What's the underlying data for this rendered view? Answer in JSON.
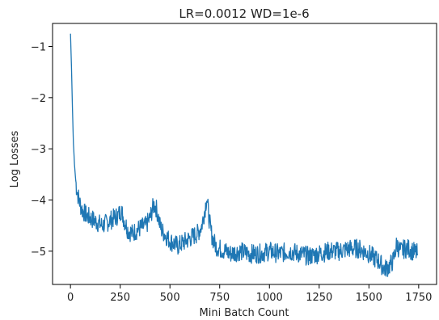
{
  "chart_data": {
    "type": "line",
    "title": "LR=0.0012 WD=1e-6",
    "xlabel": "Mini Batch Count",
    "ylabel": "Log Losses",
    "xlim": [
      -90,
      1840
    ],
    "ylim": [
      -5.65,
      -0.55
    ],
    "xticks": [
      0,
      250,
      500,
      750,
      1000,
      1250,
      1500,
      1750
    ],
    "xtick_labels": [
      "0",
      "250",
      "500",
      "750",
      "1000",
      "1250",
      "1500",
      "1750"
    ],
    "yticks": [
      -1,
      -2,
      -3,
      -4,
      -5
    ],
    "ytick_labels": [
      "−1",
      "−2",
      "−3",
      "−4",
      "−5"
    ],
    "grid": false,
    "series": [
      {
        "color": "#1f77b4",
        "x": [
          0,
          5,
          10,
          15,
          20,
          25,
          30,
          40,
          50,
          60,
          80,
          100,
          120,
          140,
          160,
          180,
          200,
          220,
          240,
          255,
          270,
          290,
          310,
          330,
          350,
          380,
          400,
          410,
          420,
          430,
          440,
          450,
          460,
          480,
          500,
          520,
          540,
          560,
          580,
          600,
          620,
          640,
          660,
          675,
          685,
          695,
          705,
          715,
          730,
          750,
          780,
          800,
          850,
          900,
          950,
          1000,
          1050,
          1100,
          1150,
          1200,
          1250,
          1300,
          1350,
          1400,
          1450,
          1500,
          1550,
          1580,
          1600,
          1620,
          1630,
          1640,
          1650,
          1660,
          1680,
          1700,
          1720,
          1745
        ],
        "y": [
          -0.75,
          -1.4,
          -2.2,
          -2.9,
          -3.3,
          -3.55,
          -3.75,
          -3.95,
          -4.1,
          -4.2,
          -4.3,
          -4.35,
          -4.4,
          -4.45,
          -4.5,
          -4.45,
          -4.4,
          -4.35,
          -4.3,
          -4.2,
          -4.4,
          -4.6,
          -4.65,
          -4.6,
          -4.55,
          -4.5,
          -4.35,
          -4.2,
          -4.1,
          -4.15,
          -4.3,
          -4.5,
          -4.6,
          -4.7,
          -4.8,
          -4.85,
          -4.9,
          -4.85,
          -4.8,
          -4.75,
          -4.7,
          -4.65,
          -4.5,
          -4.2,
          -3.95,
          -4.3,
          -4.6,
          -4.75,
          -4.9,
          -4.95,
          -5.0,
          -5.05,
          -5.0,
          -5.05,
          -5.05,
          -5.0,
          -5.05,
          -5.0,
          -5.05,
          -5.1,
          -5.05,
          -5.0,
          -5.0,
          -4.95,
          -4.95,
          -5.05,
          -5.2,
          -5.35,
          -5.3,
          -5.2,
          -5.05,
          -4.85,
          -4.95,
          -5.0,
          -4.95,
          -4.95,
          -5.0,
          -5.05
        ]
      }
    ]
  }
}
